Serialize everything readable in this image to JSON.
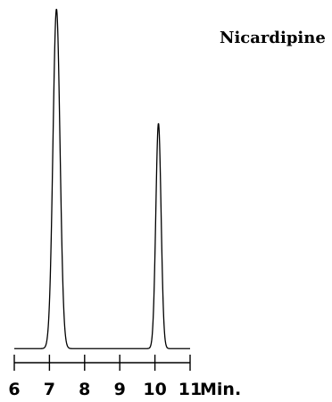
{
  "chart_data": {
    "type": "line",
    "title": "Nicardipine",
    "xlabel": "Min.",
    "ylabel": "",
    "xlim": [
      6,
      11
    ],
    "ylim": [
      0,
      100
    ],
    "x_ticks": [
      "6",
      "7",
      "8",
      "9",
      "10",
      "11"
    ],
    "grid": false,
    "legend": "none",
    "baseline": 2,
    "peaks": [
      {
        "retention_time": 7.2,
        "height": 100
      },
      {
        "retention_time": 10.1,
        "height": 67
      }
    ],
    "color": "#000000"
  }
}
